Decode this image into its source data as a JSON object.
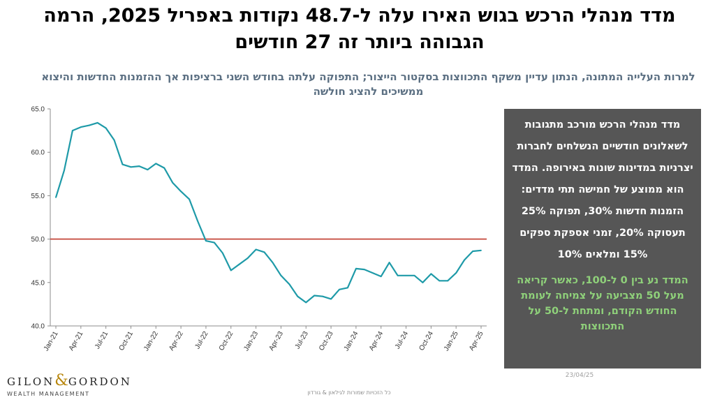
{
  "header": {
    "title": "מדד מנהלי הרכש בגוש האירו עלה ל-48.7 נקודות באפריל 2025, הרמה הגבוהה ביותר זה 27 חודשים",
    "subtitle": "למרות העלייה המתונה, הנתון עדיין משקף התכווצות בסקטור הייצור; התפוקה עלתה בחודש השני ברציפות אך ההזמנות החדשות והיצוא ממשיכים להציג חולשה"
  },
  "info_box": {
    "text": "מדד מנהלי הרכש מורכב מתגובות לשאלונים חודשיים הנשלחים לחברות יצרניות במדינות שונות באירופה. המדד הוא ממוצע של חמישה תתי מדדים: הזמנות חדשות 30%, תפוקה 25% תעסוקה 20%, זמני אספקת ספקים 15% ומלאים 10%",
    "note": "המדד נע בין 0 ל-100, כאשר קריאה מעל 50 מצביעה על צמיחה לעומת החודש הקודם, ומתחת ל-50 על התכווצות"
  },
  "slide_date": "23/04/25",
  "footer_text": "כל הזכויות שמורות לגילאון & גורדון",
  "logo": {
    "name_left": "GILON",
    "amp": "&",
    "name_right": "GORDON",
    "sub": "WEALTH MANAGEMENT"
  },
  "colors": {
    "line": "#1e9aa8",
    "reference_line": "#c0392b",
    "axis": "#8c8c8c",
    "info_bg": "#565656",
    "info_note": "#8fd17a"
  },
  "chart_data": {
    "type": "line",
    "x": [
      "Jan-21",
      "Feb-21",
      "Mar-21",
      "Apr-21",
      "May-21",
      "Jun-21",
      "Jul-21",
      "Aug-21",
      "Sep-21",
      "Oct-21",
      "Nov-21",
      "Dec-21",
      "Jan-22",
      "Feb-22",
      "Mar-22",
      "Apr-22",
      "May-22",
      "Jun-22",
      "Jul-22",
      "Aug-22",
      "Sep-22",
      "Oct-22",
      "Nov-22",
      "Dec-22",
      "Jan-23",
      "Feb-23",
      "Mar-23",
      "Apr-23",
      "May-23",
      "Jun-23",
      "Jul-23",
      "Aug-23",
      "Sep-23",
      "Oct-23",
      "Nov-23",
      "Dec-23",
      "Jan-24",
      "Feb-24",
      "Mar-24",
      "Apr-24",
      "May-24",
      "Jun-24",
      "Jul-24",
      "Aug-24",
      "Sep-24",
      "Oct-24",
      "Nov-24",
      "Dec-24",
      "Jan-25",
      "Feb-25",
      "Mar-25",
      "Apr-25"
    ],
    "series": [
      {
        "values": [
          54.8,
          57.9,
          62.5,
          62.9,
          63.1,
          63.4,
          62.8,
          61.4,
          58.6,
          58.3,
          58.4,
          58.0,
          58.7,
          58.2,
          56.5,
          55.5,
          54.6,
          52.1,
          49.8,
          49.6,
          48.4,
          46.4,
          47.1,
          47.8,
          48.8,
          48.5,
          47.3,
          45.8,
          44.8,
          43.4,
          42.7,
          43.5,
          43.4,
          43.1,
          44.2,
          44.4,
          46.6,
          46.5,
          46.1,
          45.7,
          47.3,
          45.8,
          45.8,
          45.8,
          45.0,
          46.0,
          45.2,
          45.2,
          46.1,
          47.6,
          48.6,
          48.7
        ]
      }
    ],
    "reference_line": 50.0,
    "tick_labels": [
      "Jan-21",
      "Apr-21",
      "Jul-21",
      "Oct-21",
      "Jan-22",
      "Apr-22",
      "Jul-22",
      "Oct-22",
      "Jan-23",
      "Apr-23",
      "Jul-23",
      "Oct-23",
      "Jan-24",
      "Apr-24",
      "Jul-24",
      "Oct-24",
      "Jan-25",
      "Apr-25"
    ],
    "y_ticks": [
      "40.0",
      "45.0",
      "50.0",
      "55.0",
      "60.0",
      "65.0"
    ],
    "ylim": [
      40,
      65
    ],
    "grid": false
  }
}
